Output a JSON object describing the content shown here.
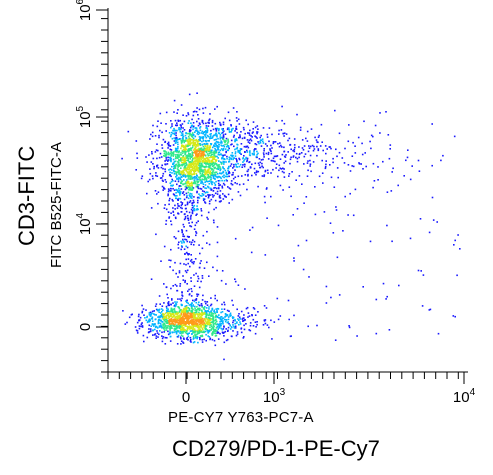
{
  "chart_data": {
    "type": "scatter",
    "x_axis": {
      "scale": "biexponential",
      "ticks": [
        {
          "value": 0,
          "label": "0"
        },
        {
          "value": 1000,
          "label": "10",
          "exp": "3"
        },
        {
          "value": 10000,
          "label": "10",
          "exp": "4"
        }
      ],
      "channel_label": "PE-CY7 Y763-PC7-A",
      "marker_label": "CD279/PD-1-PE-Cy7"
    },
    "y_axis": {
      "scale": "biexponential",
      "ticks": [
        {
          "value": 0,
          "label": "0"
        },
        {
          "value": 10000,
          "label": "10",
          "exp": "4"
        },
        {
          "value": 100000,
          "label": "10",
          "exp": "5"
        },
        {
          "value": 1000000,
          "label": "10",
          "exp": "6"
        }
      ],
      "channel_label": "FITC B525-FITC-A",
      "marker_label": "CD3-FITC"
    },
    "colormap": [
      "#1a1aff",
      "#00b4ff",
      "#2ee88a",
      "#d6e81a",
      "#ff9a1a"
    ],
    "populations": [
      {
        "name_shown": false,
        "x_center": 50,
        "y_center": 40000,
        "density": "high"
      },
      {
        "name_shown": false,
        "x_center": 0,
        "y_center": 0,
        "density": "high"
      }
    ],
    "grid": false,
    "legend": "none"
  }
}
